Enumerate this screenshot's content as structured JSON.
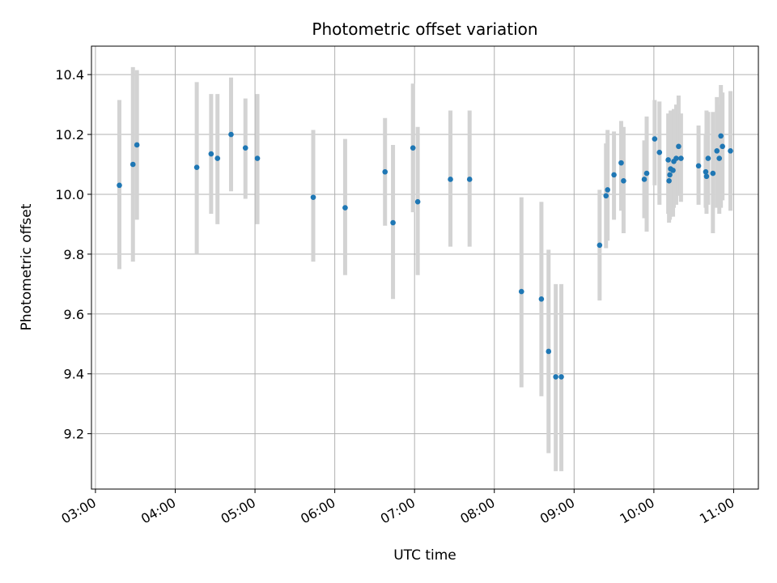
{
  "chart_data": {
    "type": "scatter",
    "title": "Photometric offset variation",
    "xlabel": "UTC time",
    "ylabel": "Photometric offset",
    "grid": true,
    "x_ticks": [
      "03:00",
      "04:00",
      "05:00",
      "06:00",
      "07:00",
      "08:00",
      "09:00",
      "10:00",
      "11:00"
    ],
    "y_ticks": [
      "9.2",
      "9.4",
      "9.6",
      "9.8",
      "10.0",
      "10.2",
      "10.4"
    ],
    "x_range_hours": [
      2.95,
      11.31
    ],
    "ylim": [
      9.015,
      10.495
    ],
    "colors": {
      "points": "#1f77b4",
      "errorbars": "#d3d3d3",
      "grid": "#b0b0b0"
    },
    "series": [
      {
        "x_hours": [
          3.3,
          3.47,
          3.52,
          4.27,
          4.45,
          4.53,
          4.7,
          4.88,
          5.03,
          5.73,
          6.13,
          6.63,
          6.73,
          6.98,
          7.04,
          7.45,
          7.69,
          8.34,
          8.59,
          8.68,
          8.77,
          8.84,
          9.32,
          9.4,
          9.42,
          9.5,
          9.59,
          9.62,
          9.88,
          9.91,
          10.01,
          10.07,
          10.18,
          10.19,
          10.2,
          10.21,
          10.24,
          10.25,
          10.28,
          10.31,
          10.34,
          10.56,
          10.65,
          10.66,
          10.68,
          10.74,
          10.79,
          10.82,
          10.84,
          10.86,
          10.96
        ],
        "y": [
          10.03,
          10.1,
          10.165,
          10.09,
          10.135,
          10.12,
          10.2,
          10.155,
          10.12,
          9.99,
          9.955,
          10.075,
          9.905,
          10.155,
          9.975,
          10.05,
          10.05,
          9.675,
          9.65,
          9.475,
          9.39,
          9.39,
          9.83,
          9.995,
          10.015,
          10.065,
          10.105,
          10.045,
          10.05,
          10.07,
          10.185,
          10.14,
          10.115,
          10.045,
          10.065,
          10.085,
          10.08,
          10.11,
          10.12,
          10.16,
          10.12,
          10.095,
          10.075,
          10.06,
          10.12,
          10.07,
          10.145,
          10.12,
          10.195,
          10.16,
          10.145
        ],
        "err_low": [
          9.75,
          9.775,
          9.915,
          9.8,
          9.935,
          9.9,
          10.01,
          9.985,
          9.9,
          9.775,
          9.73,
          9.895,
          9.65,
          9.94,
          9.73,
          9.825,
          9.825,
          9.355,
          9.325,
          9.135,
          9.075,
          9.075,
          9.645,
          9.82,
          9.845,
          9.915,
          9.945,
          9.87,
          9.92,
          9.875,
          10.03,
          9.965,
          9.935,
          9.905,
          9.915,
          9.925,
          9.925,
          9.955,
          9.965,
          9.995,
          9.975,
          9.965,
          9.955,
          9.935,
          9.965,
          9.87,
          9.955,
          9.935,
          9.955,
          9.98,
          9.945
        ],
        "err_high": [
          10.315,
          10.425,
          10.415,
          10.375,
          10.335,
          10.335,
          10.39,
          10.32,
          10.335,
          10.215,
          10.185,
          10.255,
          10.165,
          10.37,
          10.225,
          10.28,
          10.28,
          9.99,
          9.975,
          9.815,
          9.7,
          9.7,
          10.015,
          10.17,
          10.215,
          10.21,
          10.245,
          10.225,
          10.18,
          10.26,
          10.315,
          10.31,
          10.27,
          10.225,
          10.25,
          10.28,
          10.265,
          10.285,
          10.3,
          10.33,
          10.27,
          10.23,
          10.2,
          10.28,
          10.275,
          10.275,
          10.325,
          10.3,
          10.365,
          10.34,
          10.345
        ]
      }
    ]
  }
}
